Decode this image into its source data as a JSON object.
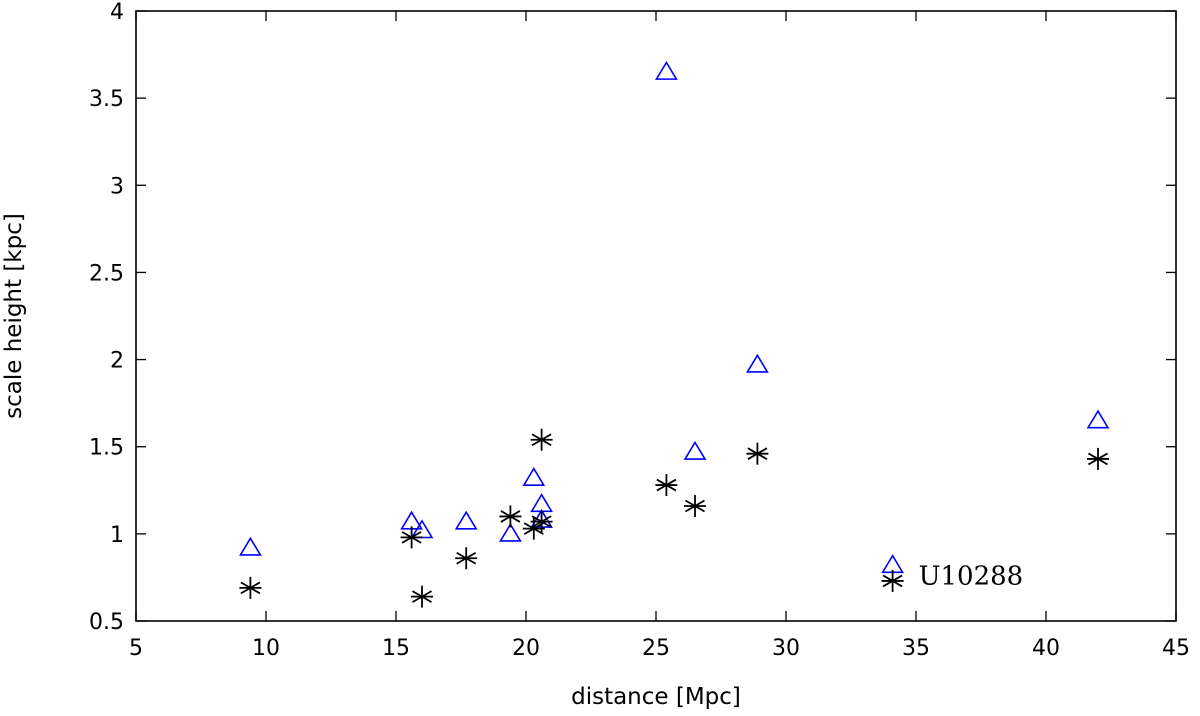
{
  "chart_data": {
    "type": "scatter",
    "xlabel": "distance [Mpc]",
    "ylabel": "scale height [kpc]",
    "xlim": [
      5,
      45
    ],
    "ylim": [
      0.5,
      4
    ],
    "xticks": [
      5,
      10,
      15,
      20,
      25,
      30,
      35,
      40,
      45
    ],
    "yticks": [
      0.5,
      1,
      1.5,
      2,
      2.5,
      3,
      3.5,
      4
    ],
    "xtick_labels": [
      "5",
      "10",
      "15",
      "20",
      "25",
      "30",
      "35",
      "40",
      "45"
    ],
    "ytick_labels": [
      "0.5",
      "1",
      "1.5",
      "2",
      "2.5",
      "3",
      "3.5",
      "4"
    ],
    "grid": false,
    "series": [
      {
        "marker": "triangle",
        "color": "#0000ff",
        "points": [
          [
            9.4,
            0.92
          ],
          [
            15.6,
            1.07
          ],
          [
            16.0,
            1.02
          ],
          [
            17.7,
            1.07
          ],
          [
            19.4,
            1.0
          ],
          [
            20.3,
            1.32
          ],
          [
            20.6,
            1.17
          ],
          [
            20.6,
            1.08
          ],
          [
            25.4,
            3.65
          ],
          [
            26.5,
            1.47
          ],
          [
            28.9,
            1.97
          ],
          [
            34.1,
            0.82
          ],
          [
            42.0,
            1.65
          ]
        ]
      },
      {
        "marker": "asterisk",
        "color": "#000000",
        "points": [
          [
            9.4,
            0.69
          ],
          [
            15.6,
            0.98
          ],
          [
            16.0,
            0.64
          ],
          [
            17.7,
            0.86
          ],
          [
            19.4,
            1.1
          ],
          [
            20.3,
            1.03
          ],
          [
            20.6,
            1.54
          ],
          [
            20.6,
            1.07
          ],
          [
            25.4,
            1.28
          ],
          [
            26.5,
            1.16
          ],
          [
            28.9,
            1.46
          ],
          [
            34.1,
            0.73
          ],
          [
            42.0,
            1.43
          ]
        ]
      }
    ],
    "annotations": [
      {
        "text": "U10288",
        "x": 34.1,
        "y": 0.76
      }
    ]
  }
}
